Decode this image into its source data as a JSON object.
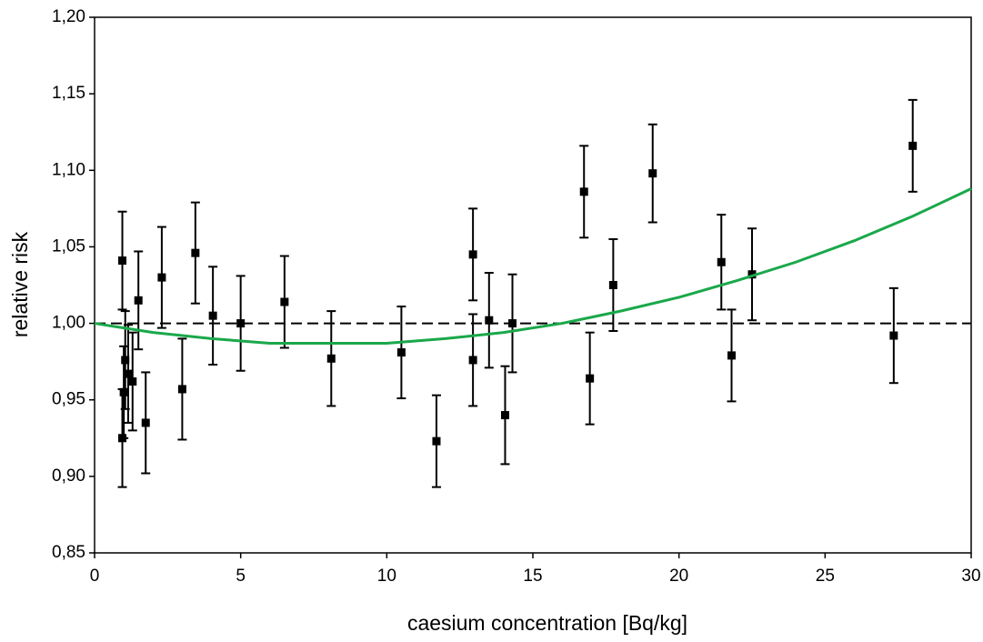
{
  "chart_data": {
    "type": "scatter",
    "xlabel": "caesium concentration [Bq/kg]",
    "ylabel": "relative risk",
    "xlim": [
      0,
      30
    ],
    "ylim": [
      0.85,
      1.2
    ],
    "xticks": [
      0,
      5,
      10,
      15,
      20,
      25,
      30
    ],
    "yticks": [
      {
        "value": 0.85,
        "label": "0,85"
      },
      {
        "value": 0.9,
        "label": "0,90"
      },
      {
        "value": 0.95,
        "label": "0,95"
      },
      {
        "value": 1.0,
        "label": "1,00"
      },
      {
        "value": 1.05,
        "label": "1,05"
      },
      {
        "value": 1.1,
        "label": "1,10"
      },
      {
        "value": 1.15,
        "label": "1,15"
      },
      {
        "value": 1.2,
        "label": "1,20"
      }
    ],
    "reference_line": {
      "value": 1.0,
      "color": "#000000",
      "dashed": true
    },
    "series": [
      {
        "type": "scatter",
        "color": "#000000",
        "x": [
          0.95,
          0.95,
          1.0,
          1.05,
          1.15,
          1.3,
          1.5,
          1.75,
          2.3,
          3.0,
          3.45,
          4.05,
          5.0,
          6.5,
          8.1,
          10.5,
          11.7,
          12.95,
          12.95,
          13.5,
          14.05,
          14.3,
          16.75,
          16.95,
          17.75,
          19.1,
          21.45,
          21.8,
          22.5,
          27.35,
          28.0
        ],
        "values": [
          1.041,
          0.925,
          0.955,
          0.976,
          0.967,
          0.962,
          1.015,
          0.935,
          1.03,
          0.957,
          1.046,
          1.005,
          1.0,
          1.014,
          0.977,
          0.981,
          0.923,
          1.045,
          0.976,
          1.002,
          0.94,
          1.0,
          1.086,
          0.964,
          1.025,
          1.098,
          1.04,
          0.979,
          1.032,
          0.992,
          1.116
        ],
        "errors": [
          0.032,
          0.032,
          0.03,
          0.032,
          0.032,
          0.032,
          0.032,
          0.033,
          0.033,
          0.033,
          0.033,
          0.032,
          0.031,
          0.03,
          0.031,
          0.03,
          0.03,
          0.03,
          0.03,
          0.031,
          0.032,
          0.032,
          0.03,
          0.03,
          0.03,
          0.032,
          0.031,
          0.03,
          0.03,
          0.031,
          0.03
        ]
      },
      {
        "type": "line",
        "color": "#1aa84a",
        "x": [
          0,
          2,
          4,
          6,
          8,
          10,
          12,
          14,
          16,
          18,
          20,
          22,
          24,
          26,
          28,
          30
        ],
        "values": [
          1.0,
          0.994,
          0.99,
          0.987,
          0.987,
          0.987,
          0.99,
          0.994,
          1.0,
          1.008,
          1.017,
          1.028,
          1.04,
          1.054,
          1.07,
          1.088
        ]
      }
    ]
  }
}
